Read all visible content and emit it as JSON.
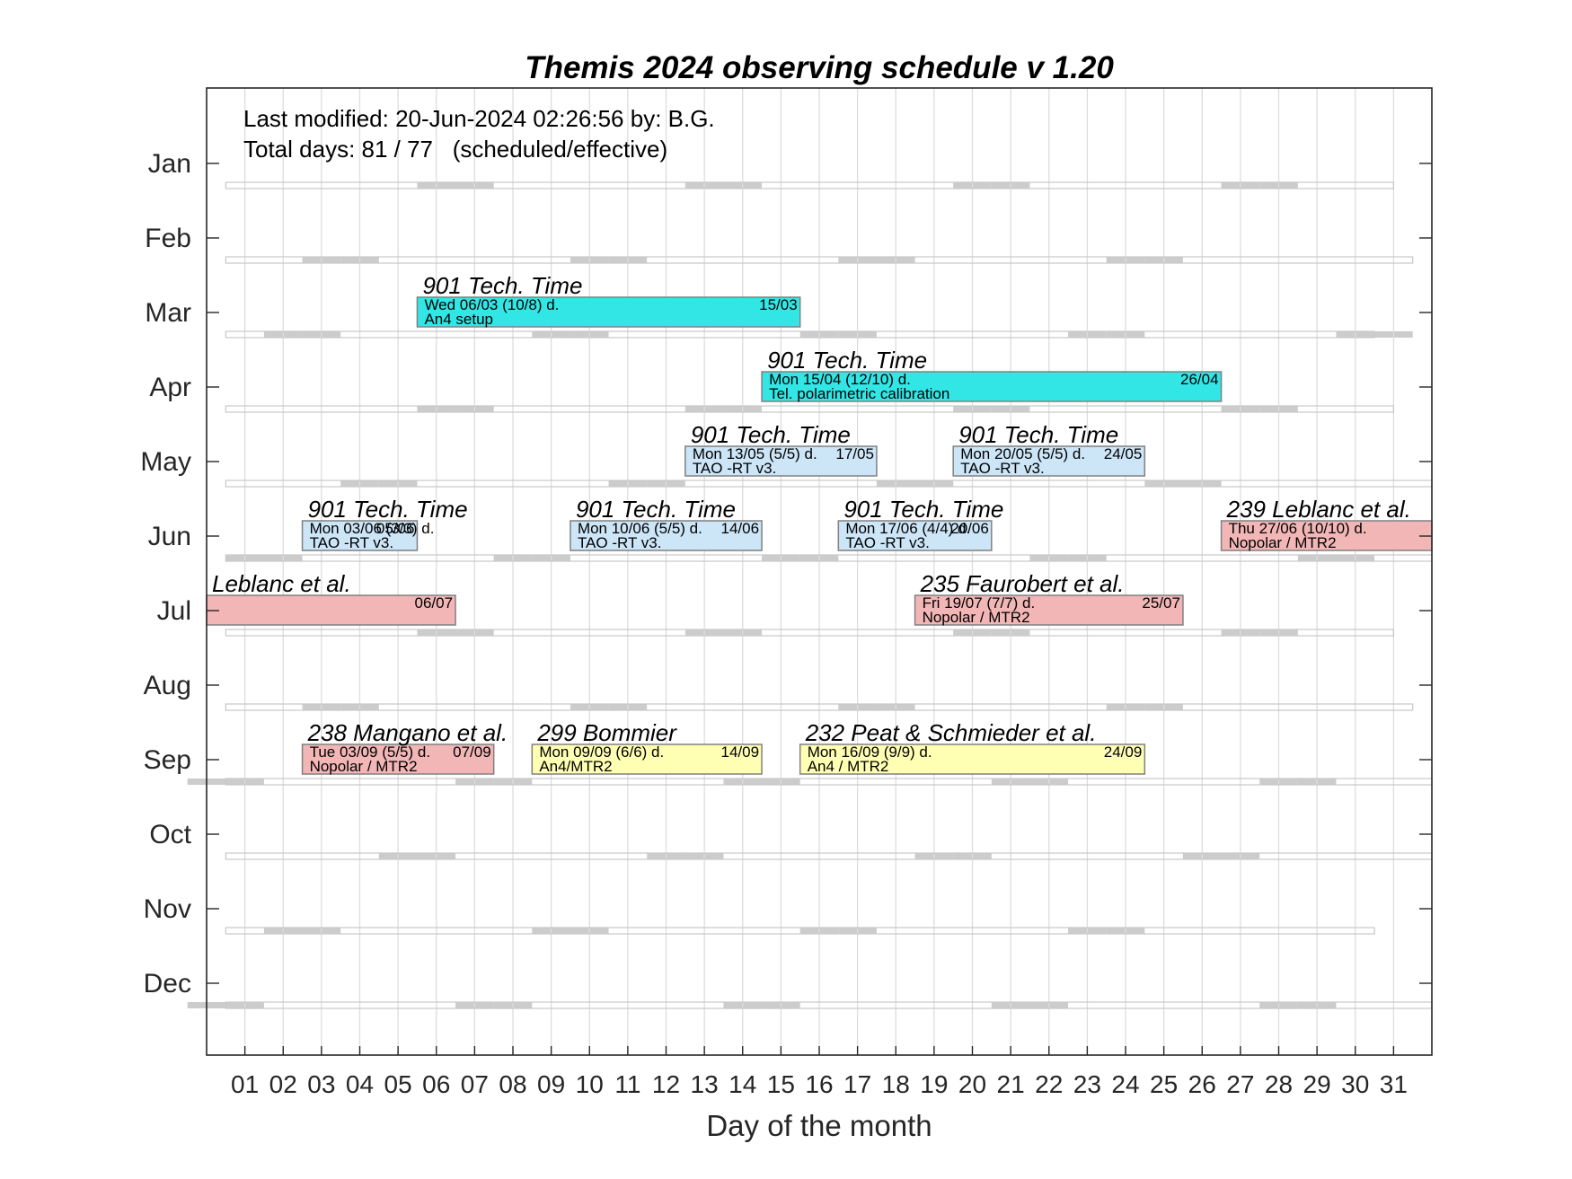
{
  "chart_data": {
    "type": "gantt",
    "title": "Themis 2024 observing schedule v 1.20",
    "info": {
      "last_modified": "Last modified: 20-Jun-2024 02:26:56 by: B.G.",
      "total_days": "Total days: 81 / 77   (scheduled/effective)"
    },
    "xlabel": "Day of the month",
    "x_ticks": [
      "01",
      "02",
      "03",
      "04",
      "05",
      "06",
      "07",
      "08",
      "09",
      "10",
      "11",
      "12",
      "13",
      "14",
      "15",
      "16",
      "17",
      "18",
      "19",
      "20",
      "21",
      "22",
      "23",
      "24",
      "25",
      "26",
      "27",
      "28",
      "29",
      "30",
      "31"
    ],
    "xlim": [
      0,
      32
    ],
    "months": [
      {
        "label": "Jan",
        "days": 31,
        "weekend_days": [
          6,
          7,
          13,
          14,
          20,
          21,
          27,
          28
        ]
      },
      {
        "label": "Feb",
        "days": 31.5,
        "weekend_days": [
          3,
          4,
          10,
          11,
          17,
          18,
          24,
          25
        ]
      },
      {
        "label": "Mar",
        "days": 30.5,
        "weekend_days": [
          2,
          3,
          9,
          10,
          16,
          17,
          23,
          24,
          30,
          31
        ]
      },
      {
        "label": "Apr",
        "days": 31,
        "weekend_days": [
          6,
          7,
          13,
          14,
          20,
          21,
          27,
          28
        ]
      },
      {
        "label": "May",
        "days": 32,
        "weekend_days": [
          4,
          5,
          11,
          12,
          18,
          19,
          25,
          26
        ]
      },
      {
        "label": "Jun",
        "days": 32,
        "weekend_days": [
          1,
          2,
          8,
          9,
          15,
          16,
          22,
          23,
          29,
          30
        ]
      },
      {
        "label": "Jul",
        "days": 31,
        "weekend_days": [
          6,
          7,
          13,
          14,
          20,
          21,
          27,
          28
        ]
      },
      {
        "label": "Aug",
        "days": 31.5,
        "weekend_days": [
          3,
          4,
          10,
          11,
          17,
          18,
          24,
          25
        ]
      },
      {
        "label": "Sep",
        "days": 32,
        "weekend_days": [
          0,
          1,
          7,
          8,
          14,
          15,
          21,
          22,
          28,
          29
        ]
      },
      {
        "label": "Oct",
        "days": 32,
        "weekend_days": [
          5,
          6,
          12,
          13,
          19,
          20,
          26,
          27
        ]
      },
      {
        "label": "Nov",
        "days": 30.5,
        "weekend_days": [
          2,
          3,
          9,
          10,
          16,
          17,
          23,
          24
        ]
      },
      {
        "label": "Dec",
        "days": 32,
        "weekend_days": [
          0,
          1,
          7,
          8,
          14,
          15,
          21,
          22,
          28,
          29
        ]
      }
    ],
    "colors": {
      "tech_time": "#33e6e6",
      "tao": "#cce5f7",
      "mtr2": "#f2b6b6",
      "an4": "#ffffb3",
      "weekend": "#cccccc",
      "grid": "#dddddd",
      "bar_edge": "#808080"
    },
    "entries": [
      {
        "month": "Mar",
        "start": 5.5,
        "end": 15.5,
        "color": "tech_time",
        "title": "901 Tech. Time",
        "line1": "Wed 06/03 (10/8) d.",
        "line2": "An4 setup",
        "end_label": "15/03"
      },
      {
        "month": "Apr",
        "start": 14.5,
        "end": 26.5,
        "color": "tech_time",
        "title": "901 Tech. Time",
        "line1": "Mon 15/04 (12/10) d.",
        "line2": "Tel. polarimetric calibration",
        "end_label": "26/04"
      },
      {
        "month": "May",
        "start": 12.5,
        "end": 17.5,
        "color": "tao",
        "title": "901 Tech. Time",
        "line1": "Mon 13/05 (5/5) d.",
        "line2": "TAO -RT v3.",
        "end_label": "17/05"
      },
      {
        "month": "May",
        "start": 19.5,
        "end": 24.5,
        "color": "tao",
        "title": "901 Tech. Time",
        "line1": "Mon 20/05 (5/5) d.",
        "line2": "TAO -RT v3.",
        "end_label": "24/05"
      },
      {
        "month": "Jun",
        "start": 2.5,
        "end": 5.5,
        "color": "tao",
        "title": "901 Tech. Time",
        "line1": "Mon 03/06 (3/3) d.",
        "line2": "TAO -RT v3.",
        "end_label": "05/06"
      },
      {
        "month": "Jun",
        "start": 9.5,
        "end": 14.5,
        "color": "tao",
        "title": "901 Tech. Time",
        "line1": "Mon 10/06 (5/5) d.",
        "line2": "TAO -RT v3.",
        "end_label": "14/06"
      },
      {
        "month": "Jun",
        "start": 16.5,
        "end": 20.5,
        "color": "tao",
        "title": "901 Tech. Time",
        "line1": "Mon 17/06 (4/4) d.",
        "line2": "TAO -RT v3.",
        "end_label": "20/06"
      },
      {
        "month": "Jun",
        "start": 26.5,
        "end": 32,
        "color": "mtr2",
        "title": "239 Leblanc et al.",
        "line1": "Thu 27/06 (10/10) d.",
        "line2": "Nopolar / MTR2",
        "end_label": ""
      },
      {
        "month": "Jul",
        "start": -0.5,
        "end": 6.5,
        "color": "mtr2",
        "title": "Leblanc et al.",
        "line1": "",
        "line2": "",
        "end_label": "06/07"
      },
      {
        "month": "Jul",
        "start": 18.5,
        "end": 25.5,
        "color": "mtr2",
        "title": "235 Faurobert et al.",
        "line1": "Fri 19/07 (7/7) d.",
        "line2": "Nopolar / MTR2",
        "end_label": "25/07"
      },
      {
        "month": "Sep",
        "start": 2.5,
        "end": 7.5,
        "color": "mtr2",
        "title": "238 Mangano et al.",
        "line1": "Tue 03/09 (5/5) d.",
        "line2": "Nopolar / MTR2",
        "end_label": "07/09"
      },
      {
        "month": "Sep",
        "start": 8.5,
        "end": 14.5,
        "color": "an4",
        "title": "299 Bommier",
        "line1": "Mon 09/09 (6/6) d.",
        "line2": "An4/MTR2",
        "end_label": "14/09"
      },
      {
        "month": "Sep",
        "start": 15.5,
        "end": 24.5,
        "color": "an4",
        "title": "232  Peat & Schmieder et al.",
        "line1": "Mon 16/09 (9/9) d.",
        "line2": "An4 / MTR2",
        "end_label": "24/09"
      }
    ]
  }
}
